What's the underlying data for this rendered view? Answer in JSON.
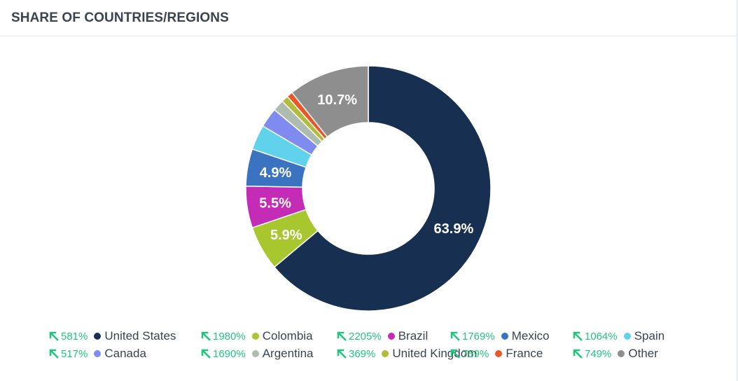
{
  "header": {
    "title": "SHARE OF COUNTRIES/REGIONS"
  },
  "colors": {
    "trend_up": "#22c57f"
  },
  "chart_data": {
    "type": "pie",
    "donut": true,
    "slices": [
      {
        "name": "United States",
        "value": 63.9,
        "label": "63.9%",
        "color": "#173052",
        "change": "581%"
      },
      {
        "name": "Colombia",
        "value": 5.9,
        "label": "5.9%",
        "color": "#a8c62e",
        "change": "1980%"
      },
      {
        "name": "Brazil",
        "value": 5.5,
        "label": "5.5%",
        "color": "#c42cb6",
        "change": "2205%"
      },
      {
        "name": "Mexico",
        "value": 4.9,
        "label": "4.9%",
        "color": "#3a73c0",
        "change": "1769%"
      },
      {
        "name": "Spain",
        "value": 3.3,
        "label": "",
        "color": "#61d2eb",
        "change": "1064%"
      },
      {
        "name": "Canada",
        "value": 2.6,
        "label": "",
        "color": "#7f8bee",
        "change": "517%"
      },
      {
        "name": "Argentina",
        "value": 1.5,
        "label": "",
        "color": "#aebcb0",
        "change": "1690%"
      },
      {
        "name": "United Kingdom",
        "value": 0.9,
        "label": "",
        "color": "#b1bc3c",
        "change": "369%"
      },
      {
        "name": "France",
        "value": 0.8,
        "label": "",
        "color": "#ea5627",
        "change": "759%"
      },
      {
        "name": "Other",
        "value": 10.7,
        "label": "10.7%",
        "color": "#8e8e8e",
        "change": "749%"
      }
    ],
    "legend_rows": [
      [
        "United States",
        "Colombia",
        "Brazil",
        "Mexico",
        "Spain"
      ],
      [
        "Canada",
        "Argentina",
        "United Kingdom",
        "France",
        "Other"
      ]
    ],
    "legend_position": "bottom"
  }
}
